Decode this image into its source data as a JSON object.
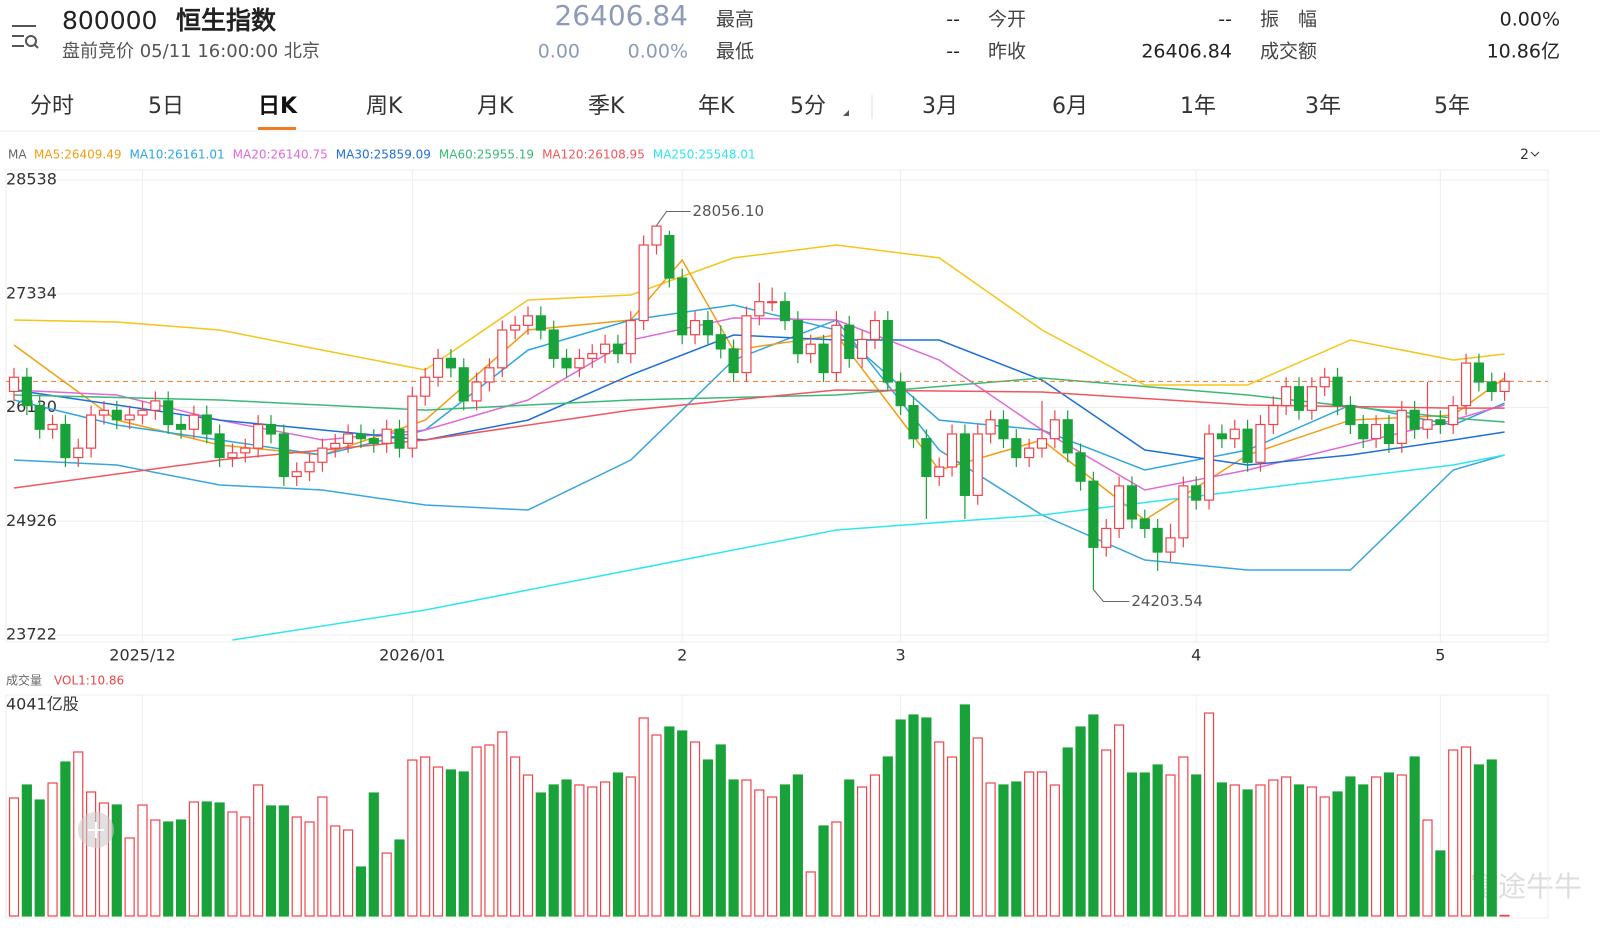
{
  "header": {
    "code": "800000",
    "name": "恒生指数",
    "status": "盘前竞价 05/11 16:00:00 北京",
    "price": 26406.84,
    "change": "0.00",
    "change_pct": "0.00%",
    "stats": [
      {
        "label": "最高",
        "value": "--"
      },
      {
        "label": "最低",
        "value": "--"
      },
      {
        "label": "今开",
        "value": "--"
      },
      {
        "label": "昨收",
        "value": "26406.84"
      },
      {
        "label": "振　幅",
        "value": "0.00%"
      },
      {
        "label": "成交额",
        "value": "10.86亿"
      }
    ]
  },
  "tabs": [
    "分时",
    "5日",
    "日K",
    "周K",
    "月K",
    "季K",
    "年K",
    "5分",
    "3月",
    "6月",
    "1年",
    "3年",
    "5年"
  ],
  "chart_data": {
    "type": "candlestick",
    "legend_title": "MA",
    "toggle": "2",
    "watermark": "富途牛牛",
    "ylim": [
      23722,
      28538
    ],
    "yticks": [
      28538,
      27334,
      26130,
      24926,
      23722
    ],
    "xticks": [
      {
        "value": 10,
        "label": "2025/12"
      },
      {
        "value": 31,
        "label": "2026/01"
      },
      {
        "value": 52,
        "label": "2"
      },
      {
        "value": 69,
        "label": "3"
      },
      {
        "value": 92,
        "label": "4"
      },
      {
        "value": 111,
        "label": "5"
      }
    ],
    "high_label": "28056.10",
    "low_label": "24203.54",
    "candles": [
      [
        26300,
        26550,
        26200,
        26450
      ],
      [
        26450,
        26550,
        26050,
        26150
      ],
      [
        26150,
        26250,
        25800,
        25900
      ],
      [
        25900,
        26050,
        25800,
        25950
      ],
      [
        25950,
        26050,
        25500,
        25600
      ],
      [
        25600,
        25800,
        25500,
        25700
      ],
      [
        25700,
        26150,
        25600,
        26050
      ],
      [
        26050,
        26200,
        25950,
        26100
      ],
      [
        26100,
        26200,
        25900,
        26000
      ],
      [
        26000,
        26150,
        25900,
        26050
      ],
      [
        26050,
        26200,
        25950,
        26100
      ],
      [
        26100,
        26300,
        26000,
        26200
      ],
      [
        26200,
        26300,
        25850,
        25950
      ],
      [
        25950,
        26050,
        25800,
        25900
      ],
      [
        25900,
        26150,
        25800,
        26050
      ],
      [
        26050,
        26150,
        25750,
        25850
      ],
      [
        25850,
        25950,
        25500,
        25600
      ],
      [
        25600,
        25750,
        25500,
        25650
      ],
      [
        25650,
        25800,
        25550,
        25700
      ],
      [
        25700,
        26050,
        25600,
        25950
      ],
      [
        25950,
        26050,
        25750,
        25850
      ],
      [
        25850,
        25950,
        25300,
        25400
      ],
      [
        25400,
        25550,
        25300,
        25450
      ],
      [
        25450,
        25650,
        25350,
        25550
      ],
      [
        25550,
        25800,
        25450,
        25700
      ],
      [
        25700,
        25850,
        25600,
        25750
      ],
      [
        25750,
        25950,
        25650,
        25850
      ],
      [
        25850,
        25950,
        25700,
        25800
      ],
      [
        25800,
        25900,
        25650,
        25750
      ],
      [
        25750,
        26000,
        25650,
        25900
      ],
      [
        25900,
        26000,
        25600,
        25700
      ],
      [
        25700,
        26350,
        25600,
        26250
      ],
      [
        26250,
        26550,
        26150,
        26450
      ],
      [
        26450,
        26750,
        26350,
        26650
      ],
      [
        26650,
        26750,
        26450,
        26550
      ],
      [
        26550,
        26650,
        26100,
        26200
      ],
      [
        26200,
        26500,
        26100,
        26400
      ],
      [
        26400,
        26650,
        26300,
        26550
      ],
      [
        26550,
        27050,
        26450,
        26950
      ],
      [
        26950,
        27100,
        26850,
        27000
      ],
      [
        27000,
        27200,
        26900,
        27100
      ],
      [
        27100,
        27200,
        26850,
        26950
      ],
      [
        26950,
        27050,
        26550,
        26650
      ],
      [
        26650,
        26750,
        26450,
        26550
      ],
      [
        26550,
        26750,
        26450,
        26650
      ],
      [
        26650,
        26800,
        26550,
        26700
      ],
      [
        26700,
        26900,
        26600,
        26800
      ],
      [
        26800,
        26900,
        26600,
        26700
      ],
      [
        26700,
        27150,
        26600,
        27050
      ],
      [
        27050,
        27950,
        26950,
        27850
      ],
      [
        27850,
        28056.1,
        27750,
        28050
      ],
      [
        27950,
        28000,
        27400,
        27500
      ],
      [
        27500,
        27600,
        26800,
        26900
      ],
      [
        26900,
        27150,
        26800,
        27050
      ],
      [
        27050,
        27150,
        26800,
        26900
      ],
      [
        26900,
        27000,
        26650,
        26750
      ],
      [
        26750,
        26850,
        26400,
        26500
      ],
      [
        26500,
        27200,
        26400,
        27100
      ],
      [
        27100,
        27450,
        27000,
        27250
      ],
      [
        27250,
        27400,
        27150,
        27250
      ],
      [
        27250,
        27350,
        26950,
        27050
      ],
      [
        27050,
        27150,
        26600,
        26700
      ],
      [
        26700,
        26900,
        26600,
        26800
      ],
      [
        26800,
        26900,
        26400,
        26500
      ],
      [
        26500,
        27150,
        26400,
        27000
      ],
      [
        27000,
        27100,
        26550,
        26650
      ],
      [
        26650,
        26950,
        26550,
        26850
      ],
      [
        26850,
        27150,
        26750,
        27050
      ],
      [
        27050,
        27150,
        26300,
        26400
      ],
      [
        26400,
        26500,
        26050,
        26150
      ],
      [
        26150,
        26250,
        25700,
        25800
      ],
      [
        25800,
        25900,
        24950,
        25400
      ],
      [
        25400,
        25600,
        25300,
        25500
      ],
      [
        25500,
        25950,
        25400,
        25850
      ],
      [
        25850,
        25950,
        24950,
        25200
      ],
      [
        25200,
        25950,
        25100,
        25850
      ],
      [
        25850,
        26100,
        25750,
        26000
      ],
      [
        26000,
        26100,
        25700,
        25800
      ],
      [
        25800,
        25900,
        25500,
        25600
      ],
      [
        25600,
        25800,
        25500,
        25700
      ],
      [
        25700,
        26200,
        25600,
        25800
      ],
      [
        25800,
        26100,
        25700,
        26000
      ],
      [
        26000,
        26100,
        25550,
        25650
      ],
      [
        25650,
        25750,
        25250,
        25350
      ],
      [
        25350,
        25450,
        24203.54,
        24650
      ],
      [
        24650,
        24950,
        24550,
        24850
      ],
      [
        24850,
        25400,
        24750,
        25300
      ],
      [
        25300,
        25400,
        24850,
        24950
      ],
      [
        24950,
        25050,
        24750,
        24850
      ],
      [
        24850,
        24950,
        24400,
        24600
      ],
      [
        24600,
        24900,
        24500,
        24750
      ],
      [
        24750,
        25400,
        24650,
        25300
      ],
      [
        25300,
        25400,
        25050,
        25150
      ],
      [
        25150,
        25950,
        25050,
        25850
      ],
      [
        25850,
        25950,
        25700,
        25800
      ],
      [
        25800,
        26000,
        25700,
        25900
      ],
      [
        25900,
        26000,
        25450,
        25550
      ],
      [
        25550,
        26050,
        25450,
        25950
      ],
      [
        25950,
        26250,
        25850,
        26150
      ],
      [
        26150,
        26450,
        26050,
        26350
      ],
      [
        26350,
        26450,
        26000,
        26100
      ],
      [
        26100,
        26450,
        26000,
        26350
      ],
      [
        26350,
        26550,
        26250,
        26450
      ],
      [
        26450,
        26550,
        26050,
        26150
      ],
      [
        26150,
        26250,
        25850,
        25950
      ],
      [
        25950,
        26050,
        25700,
        25800
      ],
      [
        25800,
        26050,
        25700,
        25950
      ],
      [
        25950,
        26050,
        25650,
        25750
      ],
      [
        25750,
        26200,
        25650,
        26100
      ],
      [
        26100,
        26200,
        25800,
        25900
      ],
      [
        25900,
        26400,
        25800,
        26000
      ],
      [
        26000,
        26100,
        25850,
        25950
      ],
      [
        25950,
        26250,
        25850,
        26150
      ],
      [
        26150,
        26700,
        26050,
        26600
      ],
      [
        26600,
        26700,
        26300,
        26400
      ],
      [
        26400,
        26500,
        26200,
        26300
      ],
      [
        26300,
        26500,
        26200,
        26406.84
      ]
    ],
    "series": [
      {
        "name": "MA5:26409.49",
        "color": "#f29d12",
        "x": [
          0,
          8,
          16,
          24,
          32,
          40,
          48,
          52,
          56,
          64,
          72,
          80,
          88,
          96,
          104,
          112,
          116
        ],
        "values": [
          26792,
          25997,
          25733,
          25627,
          25997,
          26950,
          27056,
          27691,
          26738,
          26897,
          25468,
          25786,
          24939,
          25627,
          25997,
          26050,
          26442
        ]
      },
      {
        "name": "MA10:26161.01",
        "color": "#2ea7e0",
        "x": [
          0,
          8,
          16,
          24,
          32,
          40,
          48,
          56,
          64,
          72,
          80,
          88,
          96,
          104,
          112,
          116
        ],
        "values": [
          26209,
          25945,
          25786,
          25627,
          25892,
          26738,
          27056,
          27215,
          26950,
          25997,
          25892,
          25468,
          25680,
          26156,
          25945,
          26177
        ]
      },
      {
        "name": "MA20:26140.75",
        "color": "#e06ad8",
        "x": [
          0,
          8,
          16,
          24,
          32,
          40,
          48,
          56,
          64,
          72,
          80,
          88,
          96,
          104,
          112,
          116
        ],
        "values": [
          26315,
          26262,
          25997,
          25786,
          25892,
          26209,
          26844,
          27077,
          27056,
          26633,
          25892,
          25257,
          25468,
          25733,
          25997,
          26156
        ]
      },
      {
        "name": "MA30:25859.09",
        "color": "#1f6fd8",
        "x": [
          0,
          8,
          16,
          24,
          32,
          40,
          48,
          56,
          64,
          72,
          80,
          88,
          96,
          104,
          112,
          116
        ],
        "values": [
          26315,
          26156,
          25997,
          25892,
          25786,
          25997,
          26474,
          26897,
          26844,
          26844,
          26421,
          25680,
          25521,
          25627,
          25786,
          25871
        ]
      },
      {
        "name": "MA60:25955.19",
        "color": "#3cb878",
        "x": [
          0,
          16,
          32,
          48,
          64,
          80,
          96,
          112,
          116
        ],
        "values": [
          26262,
          26209,
          26103,
          26209,
          26262,
          26442,
          26262,
          26018,
          25976
        ]
      },
      {
        "name": "MA120:26108.95",
        "color": "#f0575e",
        "x": [
          0,
          16,
          32,
          48,
          64,
          80,
          96,
          112,
          116
        ],
        "values": [
          25278,
          25574,
          25786,
          26103,
          26315,
          26294,
          26156,
          26124,
          26124
        ]
      },
      {
        "name": "MA250:25548.01",
        "color": "#2fe6f0",
        "x": [
          17,
          32,
          48,
          64,
          80,
          96,
          112,
          116
        ],
        "values": [
          23669,
          23987,
          24410,
          24833,
          24992,
          25257,
          25521,
          25627
        ]
      }
    ],
    "bands": [
      {
        "color": "#f5c518",
        "x": [
          0,
          8,
          16,
          24,
          32,
          40,
          48,
          56,
          64,
          72,
          80,
          88,
          96,
          104,
          112,
          116
        ],
        "values": [
          27056,
          27035,
          26950,
          26738,
          26527,
          27268,
          27321,
          27713,
          27850,
          27713,
          26950,
          26368,
          26368,
          26844,
          26633,
          26696
        ]
      },
      {
        "color": "#3aa6dd",
        "x": [
          0,
          8,
          16,
          24,
          32,
          40,
          48,
          56,
          64,
          72,
          80,
          88,
          96,
          104,
          112,
          116
        ],
        "values": [
          25574,
          25521,
          25310,
          25257,
          25098,
          25045,
          25574,
          26633,
          27056,
          25680,
          24992,
          24516,
          24410,
          24410,
          25468,
          25627
        ]
      }
    ],
    "volume": {
      "title": "成交量",
      "legend": "VOL1:10.86",
      "ylim": [
        0,
        4041
      ],
      "yticks": [
        {
          "value": 4041,
          "label": "4041亿股"
        }
      ],
      "values": [
        2260,
        2509,
        2221,
        2547,
        2949,
        3141,
        2375,
        2164,
        2126,
        1494,
        2126,
        1838,
        1800,
        1838,
        2183,
        2183,
        2164,
        1992,
        1896,
        2509,
        2107,
        2107,
        1896,
        1800,
        2279,
        1724,
        1647,
        938,
        2355,
        1206,
        1455,
        2987,
        3045,
        2853,
        2796,
        2758,
        3236,
        3275,
        3524,
        3045,
        2700,
        2355,
        2509,
        2604,
        2509,
        2470,
        2566,
        2738,
        2662,
        3792,
        3466,
        3619,
        3543,
        3332,
        2987,
        3275,
        2604,
        2604,
        2413,
        2279,
        2509,
        2700,
        843,
        1724,
        1800,
        2604,
        2470,
        2700,
        3045,
        3753,
        3849,
        3792,
        3332,
        3045,
        4041,
        3409,
        2547,
        2509,
        2566,
        2758,
        2758,
        2509,
        3217,
        3619,
        3849,
        3179,
        3658,
        2738,
        2738,
        2892,
        2700,
        3045,
        2700,
        3887,
        2547,
        2509,
        2413,
        2509,
        2604,
        2662,
        2509,
        2470,
        2279,
        2375,
        2662,
        2509,
        2662,
        2738,
        2700,
        3045,
        1838,
        1245,
        3179,
        3236,
        2892,
        2987,
        11
      ]
    }
  }
}
